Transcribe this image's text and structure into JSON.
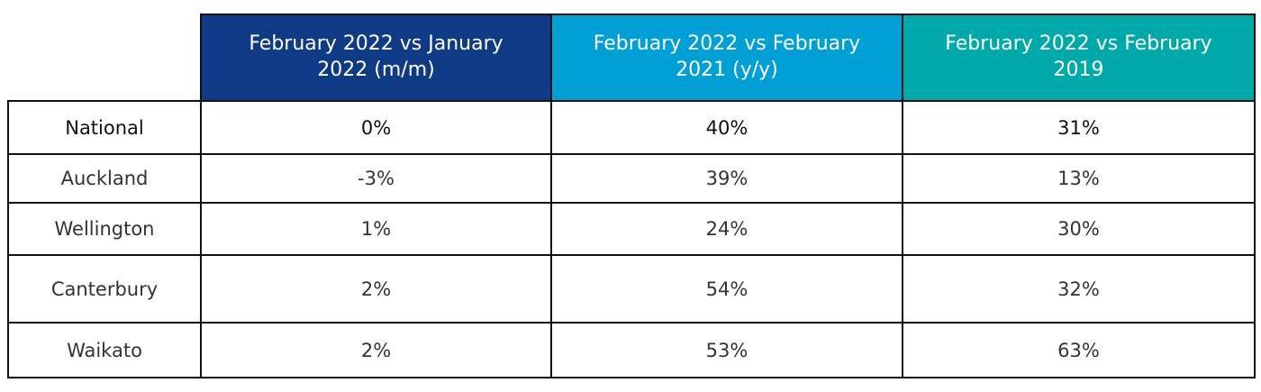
{
  "table": {
    "headers": [
      "February 2022 vs January 2022 (m/m)",
      "February 2022 vs February 2021 (y/y)",
      "February 2022 vs February 2019"
    ],
    "rows": [
      [
        "National",
        "0%",
        "40%",
        "31%"
      ],
      [
        "Auckland",
        "-3%",
        "39%",
        "13%"
      ],
      [
        "Wellington",
        "1%",
        "24%",
        "30%"
      ],
      [
        "Canterbury",
        "2%",
        "54%",
        "32%"
      ],
      [
        "Waikato",
        "2%",
        "53%",
        "63%"
      ]
    ]
  }
}
